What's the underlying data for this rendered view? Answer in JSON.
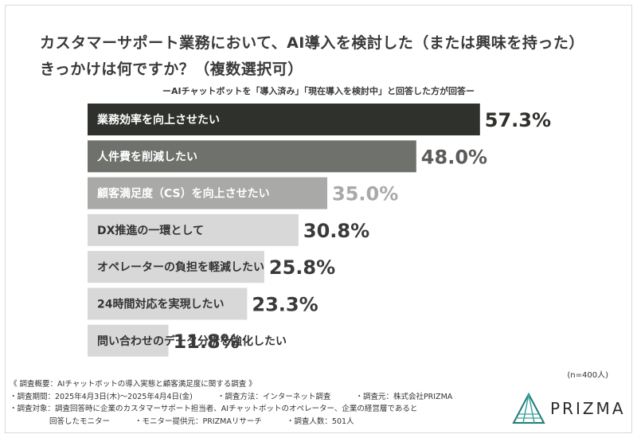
{
  "title_line1": "カスタマーサポート業務において、AI導入を検討した（または興味を持った）",
  "title_line2": "きっかけは何ですか？（複数選択可）",
  "subtitle": "ーAIチャットボットを「導入済み」「現在導入を検討中」と回答した方が回答ー",
  "n_note": "(n=400人)",
  "chart_data": {
    "type": "bar",
    "orientation": "horizontal",
    "unit": "%",
    "categories": [
      "業務効率を向上させたい",
      "人件費を削減したい",
      "顧客満足度（CS）を向上させたい",
      "DX推進の一環として",
      "オペレーターの負担を軽減したい",
      "24時間対応を実現したい",
      "問い合わせのデータ分析を強化したい"
    ],
    "values": [
      57.3,
      48.0,
      35.0,
      30.8,
      25.8,
      23.3,
      11.8
    ],
    "value_labels": [
      "57.3%",
      "48.0%",
      "35.0%",
      "30.8%",
      "25.8%",
      "23.3%",
      "11.8%"
    ],
    "colors": [
      "#2e312c",
      "#6f716d",
      "#a9aaa7",
      "#d8d8d8",
      "#d8d8d8",
      "#d8d8d8",
      "#d8d8d8"
    ],
    "label_colors": [
      "#ffffff",
      "#ffffff",
      "#ffffff",
      "#333333",
      "#333333",
      "#333333",
      "#333333"
    ],
    "value_colors": [
      "#2e312c",
      "#5a5c58",
      "#a9aaa7",
      "#3a3a3a",
      "#3a3a3a",
      "#3a3a3a",
      "#3a3a3a"
    ],
    "xlim": [
      0,
      100
    ]
  },
  "footer": {
    "line1": "《 調査概要：AIチャットボットの導入実態と顧客満足度に関する調査 》",
    "period": "・調査期間：2025年4月3日(木)〜2025年4月4日(金)",
    "method": "・調査方法：インターネット調査",
    "organizer": "・調査元：株式会社PRIZMA",
    "target1": "・調査対象：調査回答時に企業のカスタマーサポート担当者、AIチャットボットのオペレーター、企業の経営層であると",
    "target2": "回答したモニター",
    "provider": "・モニター提供元：PRIZMAリサーチ",
    "count": "・調査人数：501人"
  },
  "logo": {
    "text": "PRIZMA",
    "icon": "prizma-triangle-icon",
    "color": "#1f7a78"
  }
}
